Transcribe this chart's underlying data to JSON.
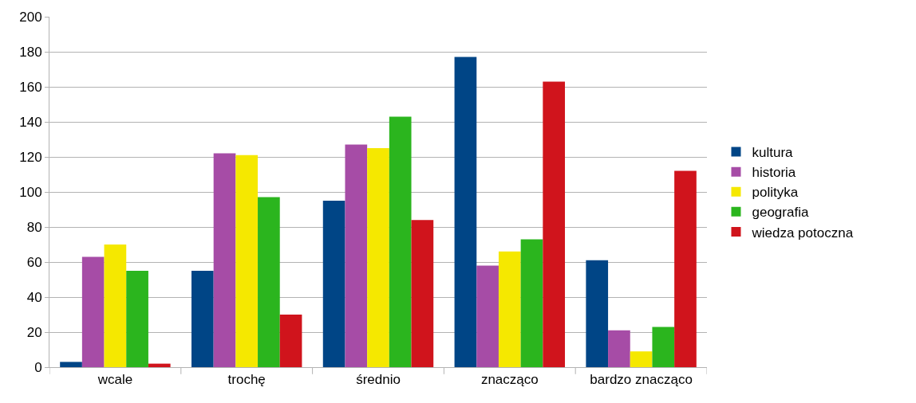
{
  "chart_data": {
    "type": "bar",
    "categories": [
      "wcale",
      "trochę",
      "średnio",
      "znacząco",
      "bardzo znacząco"
    ],
    "series": [
      {
        "name": "kultura",
        "color": "#004586",
        "values": [
          3,
          55,
          95,
          177,
          61
        ]
      },
      {
        "name": "historia",
        "color": "#a64ca6",
        "values": [
          63,
          122,
          127,
          58,
          21
        ]
      },
      {
        "name": "polityka",
        "color": "#f5e800",
        "values": [
          70,
          121,
          125,
          66,
          9
        ]
      },
      {
        "name": "geografia",
        "color": "#2bb51e",
        "values": [
          55,
          97,
          143,
          73,
          23
        ]
      },
      {
        "name": "wiedza potoczna",
        "color": "#d0141c",
        "values": [
          2,
          30,
          84,
          163,
          112
        ]
      }
    ],
    "ylim": [
      0,
      200
    ],
    "yticks": [
      0,
      20,
      40,
      60,
      80,
      100,
      120,
      140,
      160,
      180,
      200
    ],
    "grid": "y",
    "legend": "right"
  }
}
